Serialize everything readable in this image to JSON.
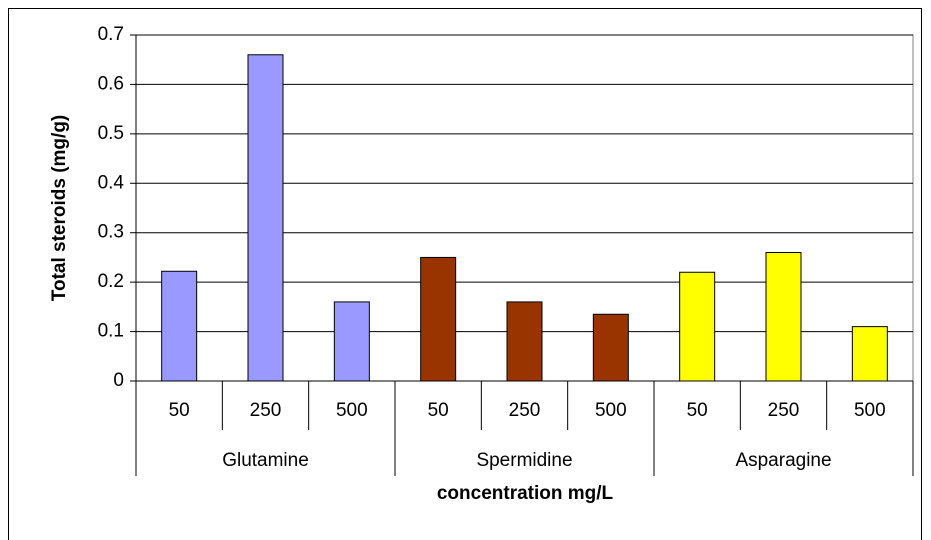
{
  "chart_data": {
    "type": "bar",
    "y_label": "Total steroids (mg/g)",
    "x_label": "concentration mg/L",
    "groups": [
      {
        "name": "Glutamine",
        "color": "#9999ff",
        "categories": [
          "50",
          "250",
          "500"
        ],
        "values": [
          0.222,
          0.66,
          0.16
        ]
      },
      {
        "name": "Spermidine",
        "color": "#993300",
        "categories": [
          "50",
          "250",
          "500"
        ],
        "values": [
          0.25,
          0.16,
          0.135
        ]
      },
      {
        "name": "Asparagine",
        "color": "#ffff00",
        "categories": [
          "50",
          "250",
          "500"
        ],
        "values": [
          0.22,
          0.26,
          0.11
        ]
      }
    ],
    "ylim": [
      0,
      0.7
    ],
    "yticks": [
      0,
      0.1,
      0.2,
      0.3,
      0.4,
      0.5,
      0.6,
      0.7
    ],
    "grid": true
  }
}
